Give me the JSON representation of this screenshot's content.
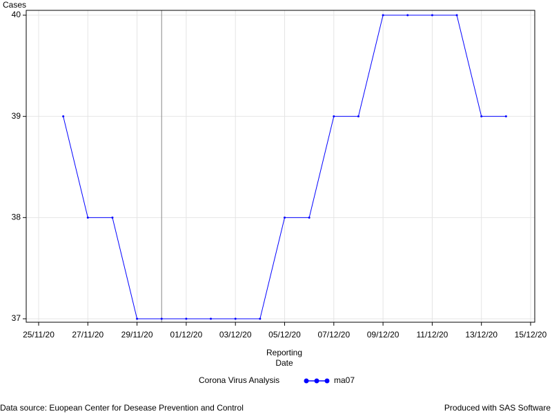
{
  "chart_data": {
    "type": "line",
    "ylabel": "Cases",
    "xlabel": [
      "Reporting",
      "Date"
    ],
    "legend_title": "Corona Virus Analysis",
    "x": [
      "26/11/20",
      "27/11/20",
      "28/11/20",
      "29/11/20",
      "30/11/20",
      "01/12/20",
      "02/12/20",
      "03/12/20",
      "04/12/20",
      "05/12/20",
      "06/12/20",
      "07/12/20",
      "08/12/20",
      "09/12/20",
      "10/12/20",
      "11/12/20",
      "12/12/20",
      "13/12/20",
      "14/12/20"
    ],
    "series": [
      {
        "name": "ma07",
        "color": "#0000ff",
        "values": [
          39,
          38,
          38,
          37,
          37,
          37,
          37,
          37,
          37,
          38,
          38,
          39,
          39,
          40,
          40,
          40,
          40,
          39,
          39
        ]
      }
    ],
    "xlim": [
      "25/11/20",
      "15/12/20"
    ],
    "xticks": [
      "25/11/20",
      "27/11/20",
      "29/11/20",
      "01/12/20",
      "03/12/20",
      "05/12/20",
      "07/12/20",
      "09/12/20",
      "11/12/20",
      "13/12/20",
      "15/12/20"
    ],
    "ylim": [
      37,
      40
    ],
    "yticks": [
      37,
      38,
      39,
      40
    ],
    "grid": true,
    "reference_x": [
      "30/11/20"
    ],
    "reference_color": "#888888",
    "footnote_left": "Data source: Euopean Center for Desease Prevention and Control",
    "footnote_right": "Produced with SAS Software"
  }
}
